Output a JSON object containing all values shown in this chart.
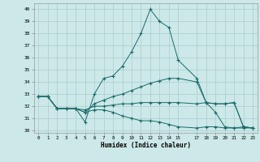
{
  "bg_color": "#cce8e8",
  "grid_color": "#aacccc",
  "line_color": "#1a6b6b",
  "xlim": [
    -0.5,
    23.5
  ],
  "ylim": [
    29.8,
    40.5
  ],
  "yticks": [
    30,
    31,
    32,
    33,
    34,
    35,
    36,
    37,
    38,
    39,
    40
  ],
  "xticks": [
    0,
    1,
    2,
    3,
    4,
    5,
    6,
    7,
    8,
    9,
    10,
    11,
    12,
    13,
    14,
    15,
    17,
    18,
    19,
    20,
    21,
    22,
    23
  ],
  "xtick_labels": [
    "0",
    "1",
    "2",
    "3",
    "4",
    "5",
    "6",
    "7",
    "8",
    "9",
    "10",
    "11",
    "12",
    "13",
    "14",
    "15",
    "17",
    "18",
    "19",
    "20",
    "21",
    "22",
    "23"
  ],
  "xlabel": "Humidex (Indice chaleur)",
  "lines": [
    {
      "x": [
        0,
        1,
        2,
        3,
        4,
        5,
        6,
        7,
        8,
        9,
        10,
        11,
        12,
        13,
        14,
        15,
        17,
        18,
        19,
        20,
        21,
        22,
        23
      ],
      "y": [
        32.8,
        32.8,
        31.8,
        31.8,
        31.8,
        30.7,
        33.0,
        34.3,
        34.5,
        35.3,
        36.5,
        38.0,
        40.0,
        39.0,
        38.5,
        35.8,
        34.3,
        32.3,
        31.5,
        30.3,
        30.2,
        30.3,
        30.2
      ]
    },
    {
      "x": [
        0,
        1,
        2,
        3,
        4,
        5,
        6,
        7,
        8,
        9,
        10,
        11,
        12,
        13,
        14,
        15,
        17,
        18,
        19,
        20,
        21,
        22,
        23
      ],
      "y": [
        32.8,
        32.8,
        31.8,
        31.8,
        31.8,
        31.5,
        32.2,
        32.5,
        32.8,
        33.0,
        33.3,
        33.6,
        33.9,
        34.1,
        34.3,
        34.3,
        34.0,
        32.3,
        32.2,
        32.2,
        32.3,
        30.3,
        30.2
      ]
    },
    {
      "x": [
        0,
        1,
        2,
        3,
        4,
        5,
        6,
        7,
        8,
        9,
        10,
        11,
        12,
        13,
        14,
        15,
        17,
        18,
        19,
        20,
        21,
        22,
        23
      ],
      "y": [
        32.8,
        32.8,
        31.8,
        31.8,
        31.8,
        31.7,
        32.0,
        32.0,
        32.1,
        32.2,
        32.2,
        32.3,
        32.3,
        32.3,
        32.3,
        32.3,
        32.2,
        32.3,
        32.2,
        32.2,
        32.3,
        30.3,
        30.2
      ]
    },
    {
      "x": [
        0,
        1,
        2,
        3,
        4,
        5,
        6,
        7,
        8,
        9,
        10,
        11,
        12,
        13,
        14,
        15,
        17,
        18,
        19,
        20,
        21,
        22,
        23
      ],
      "y": [
        32.8,
        32.8,
        31.8,
        31.8,
        31.8,
        31.5,
        31.7,
        31.7,
        31.5,
        31.2,
        31.0,
        30.8,
        30.8,
        30.7,
        30.5,
        30.3,
        30.2,
        30.3,
        30.3,
        30.2,
        30.2,
        30.2,
        30.2
      ]
    }
  ]
}
